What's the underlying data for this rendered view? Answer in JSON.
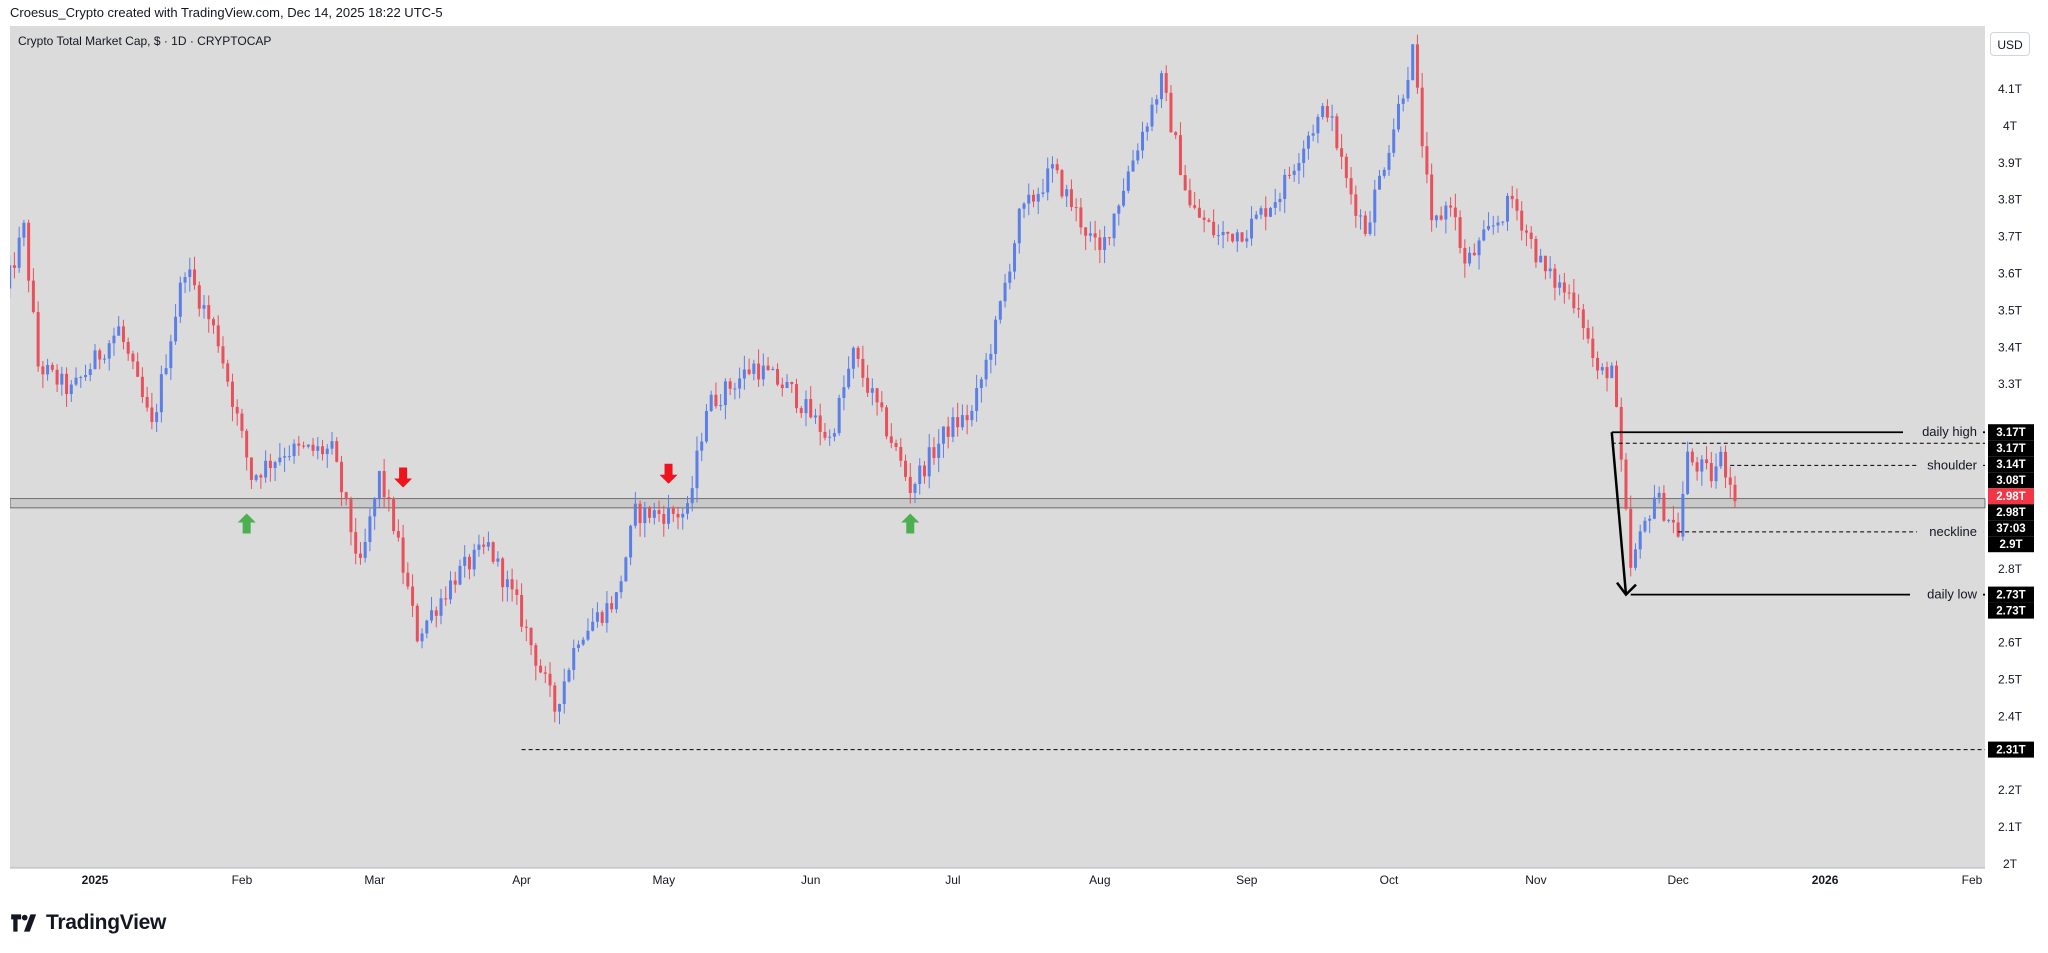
{
  "header": {
    "caption": "Croesus_Crypto created with TradingView.com, Dec 14, 2025 18:22 UTC-5"
  },
  "chart": {
    "symbol_title": "Crypto Total Market Cap, $ · 1D · CRYPTOCAP",
    "currency_label": "USD"
  },
  "footer": {
    "brand": "TradingView"
  },
  "colors": {
    "background": "#dbdbdb",
    "up_candle": "#5b7fe6",
    "down_candle": "#e8505b",
    "last_price": "#f23645",
    "up_arrow": "#4caf50",
    "down_arrow": "#f0131e",
    "label_bg": "#000000"
  },
  "chart_data": {
    "type": "candlestick",
    "x_axis": {
      "labels": [
        "2025",
        "Feb",
        "Mar",
        "Apr",
        "May",
        "Jun",
        "Jul",
        "Aug",
        "Sep",
        "Oct",
        "Nov",
        "Dec",
        "2026",
        "Feb"
      ],
      "dates": [
        "2025-01-01",
        "2025-02-01",
        "2025-03-01",
        "2025-04-01",
        "2025-05-01",
        "2025-06-01",
        "2025-07-01",
        "2025-08-01",
        "2025-09-01",
        "2025-10-01",
        "2025-11-01",
        "2025-12-01",
        "2026-01-01",
        "2026-02-01"
      ]
    },
    "y_axis": {
      "unit": "T",
      "ticks": [
        2.0,
        2.1,
        2.2,
        2.3,
        2.4,
        2.5,
        2.6,
        2.7,
        2.8,
        2.9,
        3.0,
        3.1,
        3.2,
        3.3,
        3.4,
        3.5,
        3.6,
        3.7,
        3.8,
        3.9,
        4.0,
        4.1
      ],
      "tick_labels": [
        "2T",
        "2.1T",
        "2.2T",
        "2.3T",
        "2.4T",
        "2.5T",
        "2.6T",
        "2.7T",
        "2.8T",
        "2.9T",
        "",
        "",
        "",
        "3.3T",
        "3.4T",
        "3.5T",
        "3.6T",
        "3.7T",
        "3.8T",
        "3.9T",
        "4T",
        "4.1T"
      ],
      "range": [
        2.0,
        4.22
      ]
    },
    "anchors": [
      {
        "date": "2024-12-13",
        "close": 3.55
      },
      {
        "date": "2024-12-17",
        "close": 3.72
      },
      {
        "date": "2024-12-20",
        "close": 3.35
      },
      {
        "date": "2024-12-27",
        "close": 3.28
      },
      {
        "date": "2025-01-06",
        "close": 3.45
      },
      {
        "date": "2025-01-13",
        "close": 3.18
      },
      {
        "date": "2025-01-20",
        "close": 3.62
      },
      {
        "date": "2025-01-27",
        "close": 3.42
      },
      {
        "date": "2025-02-03",
        "close": 3.05
      },
      {
        "date": "2025-02-10",
        "close": 3.12
      },
      {
        "date": "2025-02-20",
        "close": 3.12
      },
      {
        "date": "2025-02-26",
        "close": 2.8
      },
      {
        "date": "2025-03-02",
        "close": 3.05
      },
      {
        "date": "2025-03-05",
        "close": 2.92
      },
      {
        "date": "2025-03-10",
        "close": 2.62
      },
      {
        "date": "2025-03-18",
        "close": 2.78
      },
      {
        "date": "2025-03-25",
        "close": 2.86
      },
      {
        "date": "2025-03-31",
        "close": 2.7
      },
      {
        "date": "2025-04-08",
        "close": 2.42
      },
      {
        "date": "2025-04-13",
        "close": 2.62
      },
      {
        "date": "2025-04-21",
        "close": 2.72
      },
      {
        "date": "2025-04-25",
        "close": 2.95
      },
      {
        "date": "2025-05-06",
        "close": 2.95
      },
      {
        "date": "2025-05-10",
        "close": 3.24
      },
      {
        "date": "2025-05-20",
        "close": 3.35
      },
      {
        "date": "2025-05-28",
        "close": 3.28
      },
      {
        "date": "2025-06-05",
        "close": 3.15
      },
      {
        "date": "2025-06-10",
        "close": 3.38
      },
      {
        "date": "2025-06-18",
        "close": 3.15
      },
      {
        "date": "2025-06-22",
        "close": 3.02
      },
      {
        "date": "2025-06-30",
        "close": 3.18
      },
      {
        "date": "2025-07-05",
        "close": 3.22
      },
      {
        "date": "2025-07-10",
        "close": 3.45
      },
      {
        "date": "2025-07-15",
        "close": 3.75
      },
      {
        "date": "2025-07-22",
        "close": 3.88
      },
      {
        "date": "2025-08-01",
        "close": 3.65
      },
      {
        "date": "2025-08-09",
        "close": 3.95
      },
      {
        "date": "2025-08-14",
        "close": 4.12
      },
      {
        "date": "2025-08-20",
        "close": 3.78
      },
      {
        "date": "2025-08-26",
        "close": 3.7
      },
      {
        "date": "2025-09-01",
        "close": 3.72
      },
      {
        "date": "2025-09-08",
        "close": 3.82
      },
      {
        "date": "2025-09-14",
        "close": 3.98
      },
      {
        "date": "2025-09-18",
        "close": 4.05
      },
      {
        "date": "2025-09-22",
        "close": 3.85
      },
      {
        "date": "2025-09-26",
        "close": 3.72
      },
      {
        "date": "2025-10-01",
        "close": 3.95
      },
      {
        "date": "2025-10-06",
        "close": 4.2
      },
      {
        "date": "2025-10-10",
        "close": 3.72
      },
      {
        "date": "2025-10-14",
        "close": 3.8
      },
      {
        "date": "2025-10-17",
        "close": 3.62
      },
      {
        "date": "2025-10-27",
        "close": 3.8
      },
      {
        "date": "2025-11-03",
        "close": 3.6
      },
      {
        "date": "2025-11-10",
        "close": 3.52
      },
      {
        "date": "2025-11-14",
        "close": 3.32
      },
      {
        "date": "2025-11-17",
        "close": 3.35
      },
      {
        "date": "2025-11-21",
        "close": 2.8
      },
      {
        "date": "2025-11-26",
        "close": 3.0
      },
      {
        "date": "2025-12-01",
        "close": 2.9
      },
      {
        "date": "2025-12-03",
        "close": 3.1
      },
      {
        "date": "2025-12-08",
        "close": 3.05
      },
      {
        "date": "2025-12-10",
        "close": 3.1
      },
      {
        "date": "2025-12-14",
        "close": 2.98
      }
    ],
    "last_date": "2025-12-14",
    "levels": [
      {
        "price": 3.17,
        "label": "daily high",
        "style": "solid",
        "from": "2025-11-17",
        "to_axis": true
      },
      {
        "price": 3.14,
        "label": "",
        "style": "dashed",
        "from": "2025-11-17",
        "to_axis": true
      },
      {
        "price": 3.08,
        "label": "shoulder",
        "style": "dashed",
        "from": "2025-12-12",
        "to_axis": true
      },
      {
        "price": 2.9,
        "label": "neckline",
        "style": "dashed",
        "from": "2025-12-01",
        "to_axis": true
      },
      {
        "price": 2.73,
        "label": "daily low",
        "style": "solid",
        "from": "2025-11-21",
        "to_axis": true
      },
      {
        "price": 2.31,
        "label": "",
        "style": "dashed",
        "from": "2025-04-01",
        "to_axis": true
      }
    ],
    "support_band": {
      "low": 2.965,
      "high": 2.99
    },
    "price_labels": [
      {
        "price": 3.17,
        "text": "3.17T"
      },
      {
        "price": 3.17,
        "text": "3.17T"
      },
      {
        "price": 3.14,
        "text": "3.14T"
      },
      {
        "price": 3.08,
        "text": "3.08T"
      },
      {
        "price": 3.0,
        "text": "2.98T",
        "highlight": true
      },
      {
        "price": 2.98,
        "text": "2.98T"
      },
      {
        "price": 2.95,
        "text": "37:03"
      },
      {
        "price": 2.9,
        "text": "2.9T"
      },
      {
        "price": 2.73,
        "text": "2.73T"
      },
      {
        "price": 2.73,
        "text": "2.73T"
      },
      {
        "price": 2.31,
        "text": "2.31T"
      }
    ],
    "arrows": [
      {
        "date": "2025-02-02",
        "price": 2.92,
        "direction": "up"
      },
      {
        "date": "2025-03-07",
        "price": 3.05,
        "direction": "down"
      },
      {
        "date": "2025-05-02",
        "price": 3.06,
        "direction": "down"
      },
      {
        "date": "2025-06-22",
        "price": 2.92,
        "direction": "up"
      }
    ],
    "drawings": [
      {
        "type": "trend-arrow",
        "from": {
          "date": "2025-11-17",
          "price": 3.17
        },
        "to": {
          "date": "2025-11-20",
          "price": 2.73
        }
      }
    ]
  }
}
